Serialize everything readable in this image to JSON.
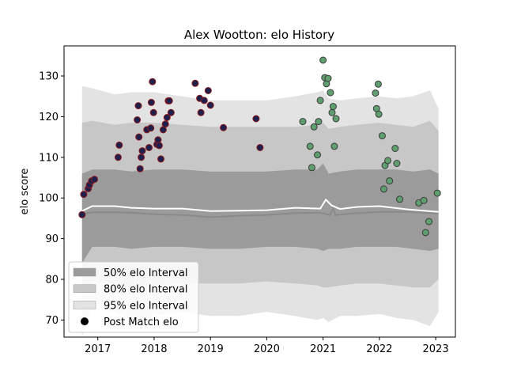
{
  "chart_data": {
    "type": "scatter",
    "title": "Alex Wootton: elo History",
    "xlabel": "",
    "ylabel": "elo score",
    "xlim": [
      2016.4,
      2023.35
    ],
    "ylim": [
      65.8,
      137.4
    ],
    "grid": false,
    "x_ticks": [
      "2017",
      "2018",
      "2019",
      "2020",
      "2021",
      "2022",
      "2023"
    ],
    "y_ticks": [
      "70",
      "80",
      "90",
      "100",
      "110",
      "120",
      "130"
    ],
    "legend_position": "lower-left",
    "legend": [
      {
        "label": "50% elo Interval"
      },
      {
        "label": "80% elo Interval"
      },
      {
        "label": "95% elo Interval"
      },
      {
        "label": "Post Match elo"
      }
    ],
    "colors": {
      "band50": "#9b9b9b",
      "band80": "#c7c7c7",
      "band95": "#e3e3e3",
      "median_line": "#8a8a8a",
      "mean_line": "#ffffff",
      "point_early": "#1f1f4d",
      "point_early_edge": "#8b1a1a",
      "point_late": "#5f9e6e",
      "point_late_edge": "#3a3a3a"
    },
    "median_line": {
      "x": [
        2016.72,
        2016.9,
        2017.3,
        2017.6,
        2018.0,
        2018.5,
        2019.0,
        2019.5,
        2020.0,
        2020.5,
        2020.95,
        2021.12,
        2021.18,
        2021.22,
        2021.5,
        2022.0,
        2022.5,
        2023.05
      ],
      "y": [
        96.0,
        96.5,
        96.5,
        96.4,
        96.0,
        95.8,
        95.3,
        95.6,
        95.8,
        96.3,
        96.4,
        95.8,
        97.5,
        95.8,
        96.2,
        96.6,
        96.6,
        96.2
      ]
    },
    "mean_line": {
      "x": [
        2016.72,
        2016.9,
        2017.3,
        2017.6,
        2018.0,
        2018.5,
        2019.0,
        2019.5,
        2020.0,
        2020.5,
        2020.95,
        2021.05,
        2021.15,
        2021.3,
        2021.6,
        2022.0,
        2022.5,
        2023.05
      ],
      "y": [
        96.8,
        98.0,
        98.0,
        97.6,
        97.4,
        97.4,
        96.8,
        96.9,
        97.0,
        97.6,
        97.4,
        99.6,
        98.2,
        97.3,
        97.8,
        98.0,
        97.2,
        96.6
      ]
    },
    "bands": [
      {
        "name": "95% elo Interval",
        "x": [
          2016.72,
          2016.9,
          2017.3,
          2017.6,
          2018.0,
          2018.5,
          2019.0,
          2019.5,
          2020.0,
          2020.5,
          2020.9,
          2021.0,
          2021.1,
          2021.3,
          2021.6,
          2022.0,
          2022.3,
          2022.6,
          2022.9,
          2023.05
        ],
        "lower": [
          66.0,
          73.0,
          72.0,
          70.0,
          71.0,
          72.0,
          71.0,
          71.0,
          72.0,
          71.0,
          70.0,
          70.5,
          69.5,
          71.0,
          71.0,
          71.5,
          70.5,
          70.0,
          68.5,
          72.0
        ],
        "upper": [
          127.5,
          127.0,
          125.5,
          126.0,
          126.0,
          125.0,
          124.0,
          124.0,
          124.0,
          125.0,
          126.0,
          126.5,
          124.5,
          124.0,
          124.5,
          125.0,
          124.5,
          125.0,
          126.5,
          122.0
        ]
      },
      {
        "name": "80% elo Interval",
        "x": [
          2016.72,
          2016.9,
          2017.3,
          2017.6,
          2018.0,
          2018.5,
          2019.0,
          2019.5,
          2020.0,
          2020.5,
          2020.9,
          2021.0,
          2021.1,
          2021.3,
          2021.6,
          2022.0,
          2022.3,
          2022.6,
          2022.9,
          2023.05
        ],
        "lower": [
          76.0,
          79.5,
          79.0,
          78.0,
          78.5,
          79.0,
          79.0,
          79.0,
          79.5,
          79.0,
          78.5,
          78.0,
          78.0,
          78.5,
          79.0,
          79.0,
          78.5,
          78.0,
          78.0,
          80.0
        ],
        "upper": [
          118.5,
          119.0,
          118.0,
          118.5,
          118.5,
          118.0,
          117.5,
          117.5,
          117.5,
          117.5,
          118.0,
          118.5,
          117.0,
          117.5,
          118.0,
          118.5,
          118.0,
          117.5,
          119.0,
          116.5
        ]
      },
      {
        "name": "50% elo Interval",
        "x": [
          2016.72,
          2016.9,
          2017.3,
          2017.6,
          2018.0,
          2018.5,
          2019.0,
          2019.5,
          2020.0,
          2020.5,
          2020.9,
          2021.0,
          2021.1,
          2021.3,
          2021.6,
          2022.0,
          2022.3,
          2022.6,
          2022.9,
          2023.05
        ],
        "lower": [
          84.0,
          88.0,
          88.0,
          87.5,
          88.0,
          88.0,
          87.5,
          87.5,
          88.0,
          88.0,
          87.5,
          87.0,
          87.5,
          87.5,
          88.0,
          88.0,
          88.0,
          87.5,
          87.0,
          87.5
        ],
        "upper": [
          106.0,
          107.0,
          107.0,
          106.5,
          107.0,
          107.0,
          106.5,
          106.5,
          106.5,
          107.0,
          107.0,
          108.5,
          106.0,
          106.5,
          107.0,
          107.0,
          107.0,
          106.5,
          107.0,
          106.0
        ]
      }
    ],
    "series": [
      {
        "group": "early",
        "x": [
          2016.72,
          2016.75,
          2016.83,
          2016.85,
          2016.89,
          2016.94,
          2017.36,
          2017.38,
          2017.7,
          2017.72,
          2017.73,
          2017.75,
          2017.77,
          2017.79,
          2017.87,
          2017.91,
          2017.94,
          2017.95,
          2017.97,
          2017.99,
          2018.05,
          2018.07,
          2018.09,
          2018.12,
          2018.16,
          2018.2,
          2018.23,
          2018.25,
          2018.27,
          2018.3,
          2018.73,
          2018.81,
          2018.83,
          2018.89,
          2018.96,
          2019.0,
          2019.23,
          2019.81,
          2019.88
        ],
        "y": [
          95.9,
          100.9,
          102.3,
          103.2,
          104.2,
          104.6,
          110.0,
          113.0,
          119.2,
          122.7,
          115.0,
          107.2,
          110.0,
          111.6,
          116.8,
          112.4,
          117.2,
          123.5,
          128.6,
          121.0,
          113.2,
          114.3,
          112.9,
          109.6,
          116.8,
          118.2,
          119.8,
          123.9,
          123.9,
          121.0,
          128.2,
          124.5,
          121.0,
          124.0,
          126.4,
          122.8,
          117.3,
          119.5,
          112.4
        ]
      },
      {
        "group": "late",
        "x": [
          2020.64,
          2020.77,
          2020.8,
          2020.84,
          2020.9,
          2020.92,
          2020.95,
          2021.0,
          2021.03,
          2021.06,
          2021.09,
          2021.13,
          2021.16,
          2021.18,
          2021.2,
          2021.23,
          2021.93,
          2021.95,
          2021.98,
          2021.99,
          2022.05,
          2022.08,
          2022.1,
          2022.15,
          2022.18,
          2022.28,
          2022.31,
          2022.36,
          2022.7,
          2022.79,
          2022.82,
          2022.88,
          2023.03
        ],
        "y": [
          118.8,
          112.7,
          107.5,
          117.5,
          110.6,
          118.8,
          124.0,
          133.9,
          129.6,
          128.1,
          129.4,
          125.9,
          121.0,
          122.5,
          112.7,
          119.5,
          125.8,
          122.0,
          128.0,
          120.6,
          115.3,
          102.2,
          108.0,
          109.2,
          104.2,
          112.2,
          108.5,
          99.7,
          98.8,
          99.4,
          91.5,
          94.2,
          101.2
        ]
      }
    ]
  }
}
